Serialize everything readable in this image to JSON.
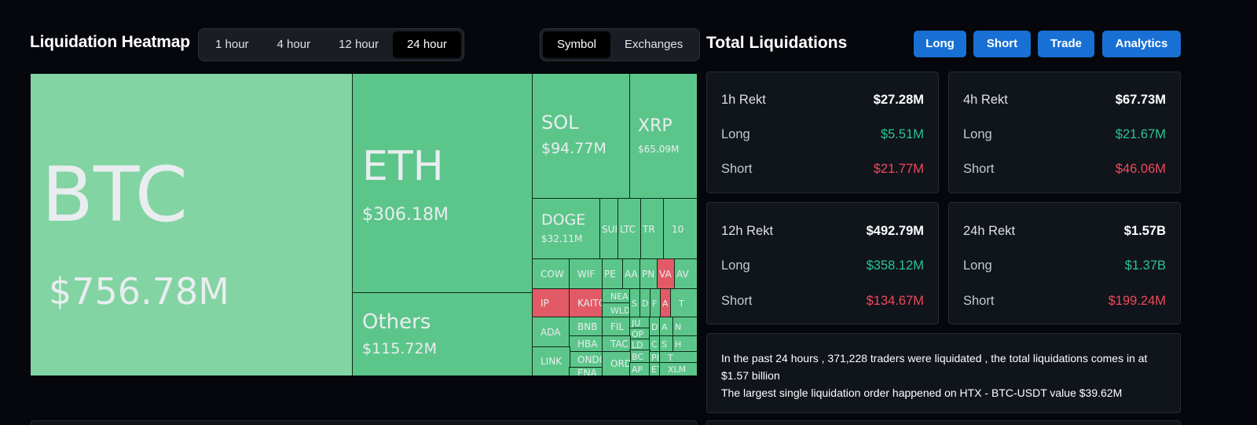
{
  "heatmap": {
    "title": "Liquidation Heatmap",
    "time_options": [
      "1 hour",
      "4 hour",
      "12 hour",
      "24 hour"
    ],
    "time_selected": "24 hour",
    "view_options": [
      "Symbol",
      "Exchanges"
    ],
    "view_selected": "Symbol",
    "tiles": {
      "btc": {
        "symbol": "BTC",
        "value": "$756.78M"
      },
      "eth": {
        "symbol": "ETH",
        "value": "$306.18M"
      },
      "others": {
        "symbol": "Others",
        "value": "$115.72M"
      },
      "sol": {
        "symbol": "SOL",
        "value": "$94.77M"
      },
      "xrp": {
        "symbol": "XRP",
        "value": "$65.09M"
      },
      "doge": {
        "symbol": "DOGE",
        "value": "$32.11M"
      },
      "small": [
        "SUI",
        "LTC",
        "TR",
        "10",
        "COW",
        "WIF",
        "PE",
        "AA",
        "PN",
        "VA",
        "AV",
        "IP",
        "KAITO",
        "NEA",
        "WLD",
        "S",
        "D",
        "F",
        "A",
        "T",
        "ADA",
        "BNB",
        "FIL",
        "JU",
        "OP",
        "D",
        "A",
        "N",
        "HBA",
        "LD",
        "C",
        "S",
        "H",
        "ONDO",
        "TAC",
        "BC",
        "PE",
        "T",
        "LINK",
        "ENA",
        "ORD",
        "AP",
        "ET",
        "XLM"
      ]
    }
  },
  "totals": {
    "title": "Total Liquidations",
    "buttons": [
      "Long",
      "Short",
      "Trade",
      "Analytics"
    ],
    "cards": [
      {
        "period": "1h Rekt",
        "total": "$27.28M",
        "long_label": "Long",
        "long": "$5.51M",
        "short_label": "Short",
        "short": "$21.77M"
      },
      {
        "period": "4h Rekt",
        "total": "$67.73M",
        "long_label": "Long",
        "long": "$21.67M",
        "short_label": "Short",
        "short": "$46.06M"
      },
      {
        "period": "12h Rekt",
        "total": "$492.79M",
        "long_label": "Long",
        "long": "$358.12M",
        "short_label": "Short",
        "short": "$134.67M"
      },
      {
        "period": "24h Rekt",
        "total": "$1.57B",
        "long_label": "Long",
        "long": "$1.37B",
        "short_label": "Short",
        "short": "$199.24M"
      }
    ],
    "summary_line1": "In the past 24 hours , 371,228 traders were liquidated , the total liquidations comes in at $1.57 billion",
    "summary_line2": "The largest single liquidation order happened on HTX - BTC-USDT value $39.62M"
  },
  "colors": {
    "gain": "#5cc68a",
    "gain_light": "#82d4a2",
    "loss": "#e35a67",
    "accent": "#1870d4"
  }
}
